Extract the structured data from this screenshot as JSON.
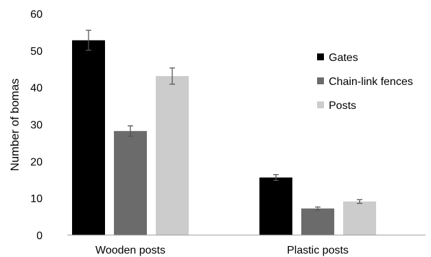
{
  "chart_data": {
    "type": "bar",
    "ylabel": "Number of bomas",
    "ylim": [
      0,
      60
    ],
    "yticks": [
      0,
      10,
      20,
      30,
      40,
      50,
      60
    ],
    "categories": [
      "Wooden posts",
      "Plastic posts"
    ],
    "series": [
      {
        "name": "Gates",
        "color": "#000000",
        "values": [
          52.8,
          15.6
        ],
        "errors": [
          2.7,
          0.8
        ]
      },
      {
        "name": "Chain-link fences",
        "color": "#6b6b6b",
        "values": [
          28.2,
          7.2
        ],
        "errors": [
          1.4,
          0.4
        ]
      },
      {
        "name": "Posts",
        "color": "#cccccc",
        "values": [
          43.1,
          9.1
        ],
        "errors": [
          2.2,
          0.5
        ]
      }
    ],
    "grid": false,
    "legend_position": "right"
  }
}
